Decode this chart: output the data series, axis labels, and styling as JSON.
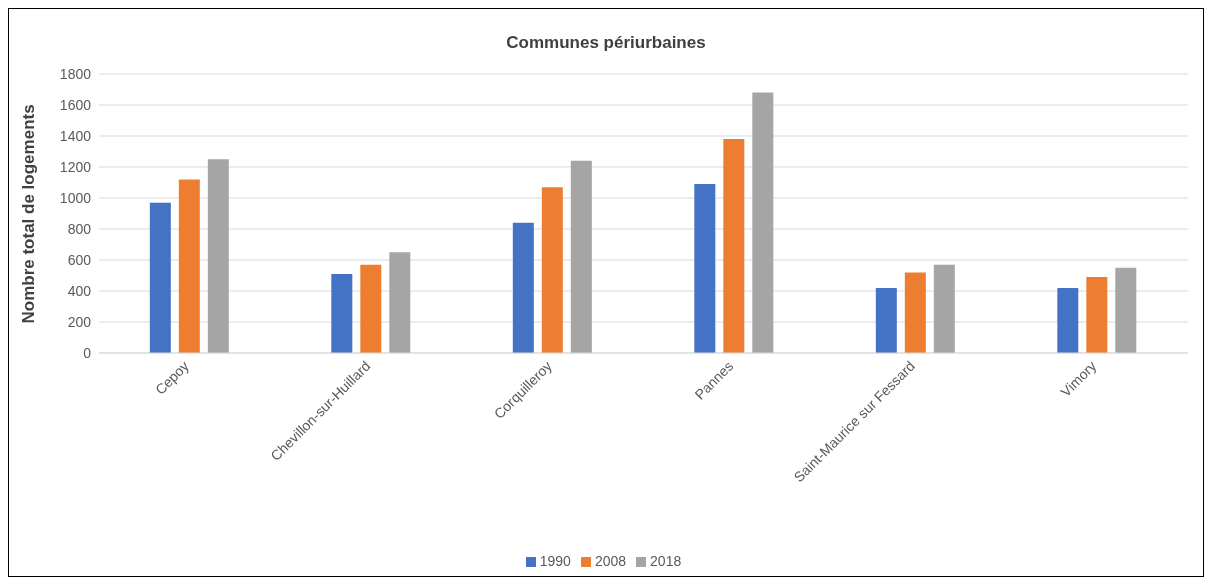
{
  "chart_data": {
    "type": "bar",
    "title": "Communes périurbaines",
    "ylabel": "Nombre total de logements",
    "categories": [
      "Cepoy",
      "Chevillon-sur-Huillard",
      "Corquilleroy",
      "Pannes",
      "Saint-Maurice sur Fessard",
      "Vimory"
    ],
    "series": [
      {
        "name": "1990",
        "color": "#4472c4",
        "values": [
          970,
          510,
          840,
          1090,
          420,
          420
        ]
      },
      {
        "name": "2008",
        "color": "#ed7d31",
        "values": [
          1120,
          570,
          1070,
          1380,
          520,
          490
        ]
      },
      {
        "name": "2018",
        "color": "#a5a5a5",
        "values": [
          1250,
          650,
          1240,
          1680,
          570,
          550
        ]
      }
    ],
    "ylim": [
      0,
      1800
    ],
    "yticks": [
      0,
      200,
      400,
      600,
      800,
      1000,
      1200,
      1400,
      1600,
      1800
    ],
    "grid": "y",
    "legend": "bottom"
  }
}
